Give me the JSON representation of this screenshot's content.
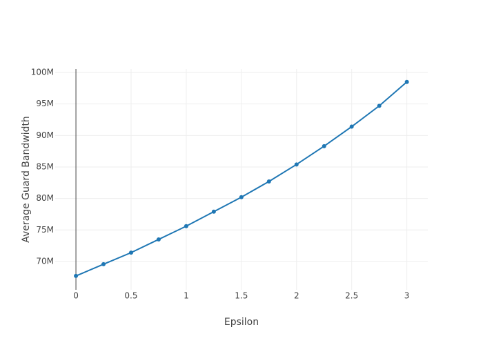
{
  "chart_data": {
    "type": "line",
    "x_label": "Epsilon",
    "y_label": "Average Guard Bandwidth",
    "x": [
      0,
      0.25,
      0.5,
      0.75,
      1,
      1.25,
      1.5,
      1.75,
      2,
      2.25,
      2.5,
      2.75,
      3
    ],
    "series": [
      {
        "color": "#1f77b4",
        "values": [
          67700000,
          69560000,
          71400000,
          73500000,
          75600000,
          77900000,
          80200000,
          82700000,
          85400000,
          88300000,
          91400000,
          94700000,
          98500000
        ]
      }
    ],
    "xlim": [
      -0.188,
      3.19
    ],
    "xticks": [
      0,
      0.5,
      1,
      1.5,
      2,
      2.5,
      3
    ],
    "ylim": [
      65500000,
      100550000
    ],
    "yticks": [
      {
        "value": 70000000,
        "label": "70M"
      },
      {
        "value": 75000000,
        "label": "75M"
      },
      {
        "value": 80000000,
        "label": "80M"
      },
      {
        "value": 85000000,
        "label": "85M"
      },
      {
        "value": 90000000,
        "label": "90M"
      },
      {
        "value": 95000000,
        "label": "95M"
      },
      {
        "value": 100000000,
        "label": "100M"
      }
    ],
    "grid": true
  }
}
